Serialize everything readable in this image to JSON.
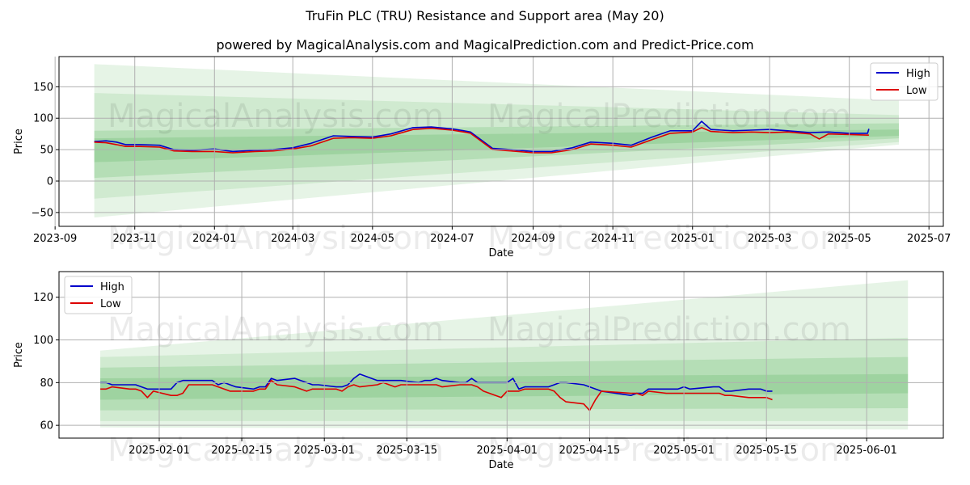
{
  "title": "TruFin PLC (TRU) Resistance and Support area (May 20)",
  "subtitle": "powered by MagicalAnalysis.com and MagicalPrediction.com and Predict-Price.com",
  "watermark": {
    "left": "MagicalAnalysis.com",
    "right": "MagicalPrediction.com"
  },
  "colors": {
    "high": "#0000cc",
    "low": "#dd0000",
    "band": "#4caf50"
  },
  "chart_data": [
    {
      "type": "line",
      "xlabel": "Date",
      "ylabel": "Price",
      "ylim": [
        -72,
        198
      ],
      "yticks": [
        -50,
        0,
        50,
        100,
        150
      ],
      "xlim": [
        "2023-09-04",
        "2025-07-12"
      ],
      "xticks": [
        "2023-09",
        "2023-11",
        "2024-01",
        "2024-03",
        "2024-05",
        "2024-07",
        "2024-09",
        "2024-11",
        "2025-01",
        "2025-03",
        "2025-05",
        "2025-07"
      ],
      "legend": [
        "High",
        "Low"
      ],
      "legend_position": "top-right",
      "grid": true,
      "bands_x": [
        "2023-10-01",
        "2025-06-08"
      ],
      "bands": [
        {
          "start": [
            -58,
            186
          ],
          "end": [
            58,
            128
          ],
          "opacity": 0.14
        },
        {
          "start": [
            -28,
            140
          ],
          "end": [
            62,
            105
          ],
          "opacity": 0.14
        },
        {
          "start": [
            5,
            80
          ],
          "end": [
            68,
            92
          ],
          "opacity": 0.2
        },
        {
          "start": [
            30,
            68
          ],
          "end": [
            72,
            82
          ],
          "opacity": 0.22
        }
      ],
      "series": [
        {
          "name": "High",
          "x": [
            "2023-10-01",
            "2023-10-10",
            "2023-10-18",
            "2023-10-25",
            "2023-11-05",
            "2023-11-20",
            "2023-12-01",
            "2023-12-15",
            "2024-01-01",
            "2024-01-15",
            "2024-02-01",
            "2024-02-15",
            "2024-03-01",
            "2024-03-15",
            "2024-04-01",
            "2024-04-15",
            "2024-05-01",
            "2024-05-15",
            "2024-06-01",
            "2024-06-15",
            "2024-07-01",
            "2024-07-10",
            "2024-07-15",
            "2024-08-01",
            "2024-08-15",
            "2024-09-01",
            "2024-09-15",
            "2024-10-01",
            "2024-10-15",
            "2024-11-01",
            "2024-11-15",
            "2024-12-01",
            "2024-12-15",
            "2025-01-01",
            "2025-01-08",
            "2025-01-15",
            "2025-02-01",
            "2025-02-15",
            "2025-03-01",
            "2025-03-15",
            "2025-04-01",
            "2025-04-15",
            "2025-05-01",
            "2025-05-15",
            "2025-05-16"
          ],
          "values": [
            63,
            64,
            62,
            58,
            58,
            57,
            50,
            49,
            51,
            47,
            49,
            50,
            53,
            60,
            72,
            71,
            70,
            75,
            85,
            86,
            83,
            80,
            78,
            52,
            50,
            47,
            47,
            53,
            62,
            60,
            57,
            70,
            80,
            80,
            95,
            82,
            80,
            81,
            82,
            80,
            77,
            78,
            76,
            76,
            83
          ]
        },
        {
          "name": "Low",
          "x": [
            "2023-10-01",
            "2023-10-10",
            "2023-10-18",
            "2023-10-25",
            "2023-11-05",
            "2023-11-20",
            "2023-12-01",
            "2023-12-15",
            "2024-01-01",
            "2024-01-15",
            "2024-02-01",
            "2024-02-15",
            "2024-03-01",
            "2024-03-15",
            "2024-04-01",
            "2024-04-15",
            "2024-05-01",
            "2024-05-15",
            "2024-06-01",
            "2024-06-15",
            "2024-07-01",
            "2024-07-10",
            "2024-07-15",
            "2024-08-01",
            "2024-08-15",
            "2024-09-01",
            "2024-09-15",
            "2024-10-01",
            "2024-10-15",
            "2024-11-01",
            "2024-11-15",
            "2024-12-01",
            "2024-12-15",
            "2025-01-01",
            "2025-01-08",
            "2025-01-15",
            "2025-02-01",
            "2025-02-15",
            "2025-03-01",
            "2025-03-15",
            "2025-04-01",
            "2025-04-08",
            "2025-04-15",
            "2025-05-01",
            "2025-05-16"
          ],
          "values": [
            62,
            61,
            58,
            55,
            55,
            54,
            48,
            47,
            47,
            45,
            47,
            48,
            51,
            56,
            68,
            69,
            68,
            72,
            82,
            84,
            81,
            78,
            76,
            50,
            48,
            45,
            45,
            50,
            59,
            57,
            54,
            66,
            76,
            78,
            85,
            79,
            77,
            78,
            77,
            78,
            75,
            67,
            75,
            74,
            73
          ]
        }
      ]
    },
    {
      "type": "line",
      "xlabel": "Date",
      "ylabel": "Price",
      "ylim": [
        54,
        132
      ],
      "yticks": [
        60,
        80,
        100,
        120
      ],
      "xlim": [
        "2025-01-15",
        "2025-06-14"
      ],
      "xticks": [
        "2025-02-01",
        "2025-02-15",
        "2025-03-01",
        "2025-03-15",
        "2025-04-01",
        "2025-04-15",
        "2025-05-01",
        "2025-05-15",
        "2025-06-01"
      ],
      "legend": [
        "High",
        "Low"
      ],
      "legend_position": "top-left",
      "grid": true,
      "bands_x": [
        "2025-01-22",
        "2025-06-08"
      ],
      "bands": [
        {
          "start": [
            59,
            95
          ],
          "end": [
            58,
            128
          ],
          "opacity": 0.14
        },
        {
          "start": [
            62,
            92
          ],
          "end": [
            62,
            101
          ],
          "opacity": 0.14
        },
        {
          "start": [
            67,
            87
          ],
          "end": [
            68,
            92
          ],
          "opacity": 0.2
        },
        {
          "start": [
            72,
            82
          ],
          "end": [
            75,
            84
          ],
          "opacity": 0.22
        }
      ],
      "series": [
        {
          "name": "High",
          "x": [
            "2025-01-22",
            "2025-01-23",
            "2025-01-24",
            "2025-01-27",
            "2025-01-28",
            "2025-01-29",
            "2025-01-30",
            "2025-01-31",
            "2025-02-03",
            "2025-02-04",
            "2025-02-05",
            "2025-02-06",
            "2025-02-07",
            "2025-02-10",
            "2025-02-11",
            "2025-02-12",
            "2025-02-13",
            "2025-02-14",
            "2025-02-17",
            "2025-02-18",
            "2025-02-19",
            "2025-02-20",
            "2025-02-21",
            "2025-02-24",
            "2025-02-25",
            "2025-02-26",
            "2025-02-27",
            "2025-02-28",
            "2025-03-03",
            "2025-03-04",
            "2025-03-05",
            "2025-03-06",
            "2025-03-07",
            "2025-03-10",
            "2025-03-11",
            "2025-03-12",
            "2025-03-13",
            "2025-03-14",
            "2025-03-17",
            "2025-03-18",
            "2025-03-19",
            "2025-03-20",
            "2025-03-21",
            "2025-03-24",
            "2025-03-25",
            "2025-03-26",
            "2025-03-27",
            "2025-03-28",
            "2025-03-31",
            "2025-04-01",
            "2025-04-02",
            "2025-04-03",
            "2025-04-04",
            "2025-04-07",
            "2025-04-08",
            "2025-04-09",
            "2025-04-10",
            "2025-04-11",
            "2025-04-14",
            "2025-04-15",
            "2025-04-16",
            "2025-04-17",
            "2025-04-22",
            "2025-04-23",
            "2025-04-24",
            "2025-04-25",
            "2025-04-28",
            "2025-04-29",
            "2025-04-30",
            "2025-05-01",
            "2025-05-02",
            "2025-05-06",
            "2025-05-07",
            "2025-05-08",
            "2025-05-09",
            "2025-05-12",
            "2025-05-13",
            "2025-05-14",
            "2025-05-15",
            "2025-05-16"
          ],
          "values": [
            80,
            80,
            79,
            79,
            79,
            78,
            77,
            77,
            77,
            80,
            81,
            81,
            81,
            81,
            79,
            80,
            79,
            78,
            77,
            78,
            78,
            82,
            81,
            82,
            81,
            80,
            79,
            79,
            78,
            78,
            79,
            82,
            84,
            81,
            81,
            81,
            81,
            81,
            80,
            81,
            81,
            82,
            81,
            80,
            80,
            82,
            80,
            80,
            80,
            80,
            82,
            77,
            78,
            78,
            78,
            79,
            80,
            80,
            79,
            78,
            77,
            76,
            74,
            75,
            75,
            77,
            77,
            77,
            77,
            78,
            77,
            78,
            78,
            76,
            76,
            77,
            77,
            77,
            76,
            76
          ]
        },
        {
          "name": "Low",
          "x": [
            "2025-01-22",
            "2025-01-23",
            "2025-01-24",
            "2025-01-27",
            "2025-01-28",
            "2025-01-29",
            "2025-01-30",
            "2025-01-31",
            "2025-02-03",
            "2025-02-04",
            "2025-02-05",
            "2025-02-06",
            "2025-02-07",
            "2025-02-10",
            "2025-02-11",
            "2025-02-12",
            "2025-02-13",
            "2025-02-14",
            "2025-02-17",
            "2025-02-18",
            "2025-02-19",
            "2025-02-20",
            "2025-02-21",
            "2025-02-24",
            "2025-02-25",
            "2025-02-26",
            "2025-02-27",
            "2025-02-28",
            "2025-03-03",
            "2025-03-04",
            "2025-03-05",
            "2025-03-06",
            "2025-03-07",
            "2025-03-10",
            "2025-03-11",
            "2025-03-12",
            "2025-03-13",
            "2025-03-14",
            "2025-03-17",
            "2025-03-18",
            "2025-03-19",
            "2025-03-20",
            "2025-03-21",
            "2025-03-24",
            "2025-03-25",
            "2025-03-26",
            "2025-03-27",
            "2025-03-28",
            "2025-03-31",
            "2025-04-01",
            "2025-04-02",
            "2025-04-03",
            "2025-04-04",
            "2025-04-07",
            "2025-04-08",
            "2025-04-09",
            "2025-04-10",
            "2025-04-11",
            "2025-04-14",
            "2025-04-15",
            "2025-04-16",
            "2025-04-17",
            "2025-04-22",
            "2025-04-23",
            "2025-04-24",
            "2025-04-25",
            "2025-04-28",
            "2025-04-29",
            "2025-04-30",
            "2025-05-01",
            "2025-05-02",
            "2025-05-06",
            "2025-05-07",
            "2025-05-08",
            "2025-05-09",
            "2025-05-12",
            "2025-05-13",
            "2025-05-14",
            "2025-05-15",
            "2025-05-16"
          ],
          "values": [
            77,
            77,
            78,
            77,
            77,
            76,
            73,
            76,
            74,
            74,
            75,
            79,
            79,
            79,
            78,
            77,
            76,
            76,
            76,
            77,
            77,
            81,
            79,
            78,
            77,
            76,
            77,
            77,
            77,
            76,
            78,
            79,
            78,
            79,
            80,
            79,
            78,
            79,
            79,
            79,
            79,
            79,
            78,
            79,
            79,
            79,
            78,
            76,
            73,
            76,
            76,
            76,
            77,
            77,
            77,
            76,
            73,
            71,
            70,
            67,
            72,
            76,
            75,
            75,
            74,
            76,
            75,
            75,
            75,
            75,
            75,
            75,
            75,
            74,
            74,
            73,
            73,
            73,
            73,
            72
          ]
        }
      ]
    }
  ]
}
